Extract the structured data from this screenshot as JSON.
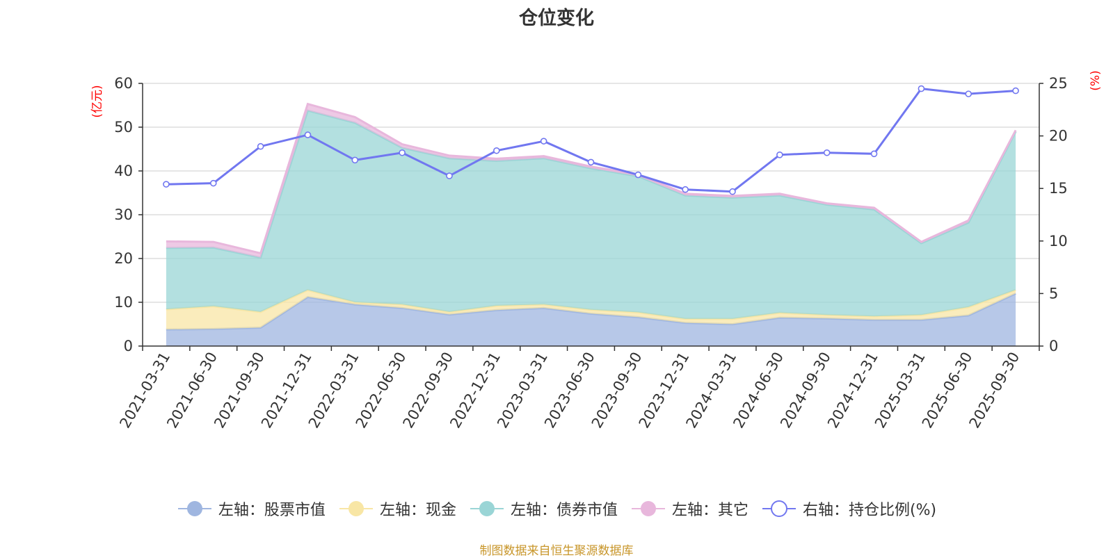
{
  "title": "仓位变化",
  "source_note": "制图数据来自恒生聚源数据库",
  "colors": {
    "stock": "#9fb6e0",
    "cash": "#f8e6a5",
    "bond": "#9ad5d6",
    "other": "#e8b7dc",
    "ratio": "#7177f0",
    "grid": "#cccccc",
    "axis": "#333333",
    "unit": "#ff0000"
  },
  "legend": [
    {
      "label": "左轴：股票市值",
      "key": "stock",
      "icon": "filled-circle-icon"
    },
    {
      "label": "左轴：现金",
      "key": "cash",
      "icon": "filled-circle-icon"
    },
    {
      "label": "左轴：债券市值",
      "key": "bond",
      "icon": "filled-circle-icon"
    },
    {
      "label": "左轴：其它",
      "key": "other",
      "icon": "filled-circle-icon"
    },
    {
      "label": "右轴：持仓比例(%)",
      "key": "ratio",
      "icon": "hollow-circle-icon"
    }
  ],
  "chart_data": {
    "type": "area",
    "title": "仓位变化",
    "stacked": true,
    "grid": true,
    "legend_position": "bottom",
    "categories": [
      "2021-03-31",
      "2021-06-30",
      "2021-09-30",
      "2021-12-31",
      "2022-03-31",
      "2022-06-30",
      "2022-09-30",
      "2022-12-31",
      "2023-03-31",
      "2023-06-30",
      "2023-09-30",
      "2023-12-31",
      "2024-03-31",
      "2024-06-30",
      "2024-09-30",
      "2024-12-31",
      "2025-03-31",
      "2025-06-30",
      "2025-09-30"
    ],
    "left_axis": {
      "unit": "(亿元)",
      "ylim": [
        0,
        60
      ],
      "ticks": [
        0,
        10,
        20,
        30,
        40,
        50,
        60
      ]
    },
    "right_axis": {
      "unit": "(%)",
      "ylim": [
        0,
        25
      ],
      "ticks": [
        0,
        5,
        10,
        15,
        20,
        25
      ]
    },
    "series": [
      {
        "name": "左轴：股票市值",
        "key": "stock",
        "axis": "left",
        "type": "area",
        "values": [
          3.8,
          3.9,
          4.2,
          11.2,
          9.5,
          8.7,
          7.2,
          8.2,
          8.7,
          7.4,
          6.6,
          5.3,
          5.0,
          6.5,
          6.3,
          6.0,
          6.0,
          7.0,
          12.0
        ]
      },
      {
        "name": "左轴：现金",
        "key": "cash",
        "axis": "left",
        "type": "area",
        "values": [
          4.6,
          5.2,
          3.6,
          1.6,
          0.5,
          0.8,
          0.6,
          1.0,
          0.8,
          0.9,
          1.1,
          0.9,
          1.2,
          1.1,
          0.8,
          0.8,
          1.1,
          1.9,
          0.8
        ]
      },
      {
        "name": "左轴：债券市值",
        "key": "bond",
        "axis": "left",
        "type": "area",
        "values": [
          14.0,
          13.4,
          12.4,
          41.0,
          41.0,
          35.8,
          35.1,
          33.1,
          33.4,
          32.3,
          31.1,
          28.2,
          27.7,
          26.8,
          25.2,
          24.4,
          16.4,
          19.3,
          36.2
        ]
      },
      {
        "name": "左轴：其它",
        "key": "other",
        "axis": "left",
        "type": "area",
        "values": [
          1.5,
          1.3,
          1.0,
          1.5,
          1.3,
          0.8,
          0.6,
          0.5,
          0.5,
          0.4,
          0.4,
          0.4,
          0.4,
          0.4,
          0.3,
          0.4,
          0.3,
          0.5,
          0.3
        ]
      },
      {
        "name": "右轴：持仓比例(%)",
        "key": "ratio",
        "axis": "right",
        "type": "line",
        "values": [
          15.4,
          15.5,
          19.0,
          20.1,
          17.7,
          18.4,
          16.2,
          18.6,
          19.5,
          17.5,
          16.3,
          14.9,
          14.7,
          18.2,
          18.4,
          18.3,
          24.5,
          24.0,
          24.3
        ]
      }
    ]
  }
}
